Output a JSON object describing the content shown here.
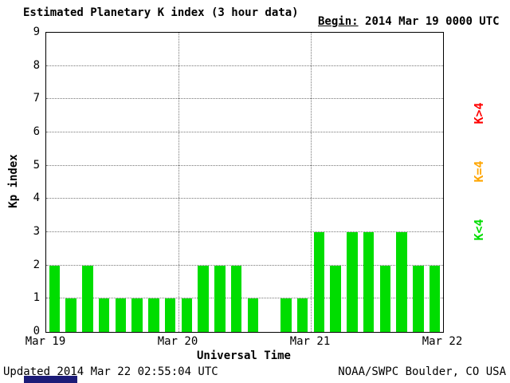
{
  "header": {
    "title": "Estimated Planetary K index (3 hour data)",
    "begin_label": "Begin:",
    "begin_value": "2014 Mar 19 0000 UTC"
  },
  "chart_data": {
    "type": "bar",
    "title": "Estimated Planetary K index (3 hour data)",
    "xlabel": "Universal Time",
    "ylabel": "Kp index",
    "ylim": [
      0,
      9
    ],
    "y_ticks": [
      0,
      1,
      2,
      3,
      4,
      5,
      6,
      7,
      8,
      9
    ],
    "x_tick_labels": [
      "Mar 19",
      "Mar 20",
      "Mar 21",
      "Mar 22"
    ],
    "interval_hours": 3,
    "grid": "dotted horizontal lines at each Kp integer; dotted vertical lines at day boundaries",
    "legend_position": "right, rotated",
    "colors": {
      "gt4": "#FF0000",
      "eq4": "#FFA500",
      "lt4": "#00DD00"
    },
    "values": [
      2,
      1,
      2,
      1,
      1,
      1,
      1,
      1,
      1,
      2,
      2,
      2,
      1,
      null,
      1,
      1,
      3,
      2,
      3,
      3,
      2,
      3,
      2,
      2
    ]
  },
  "legend": [
    {
      "label": "K>4",
      "color": "#FF0000"
    },
    {
      "label": "K=4",
      "color": "#FFA500"
    },
    {
      "label": "K<4",
      "color": "#00DD00"
    }
  ],
  "footer": {
    "updated": "Updated 2014 Mar 22 02:55:04 UTC",
    "source": "NOAA/SWPC Boulder, CO USA"
  }
}
